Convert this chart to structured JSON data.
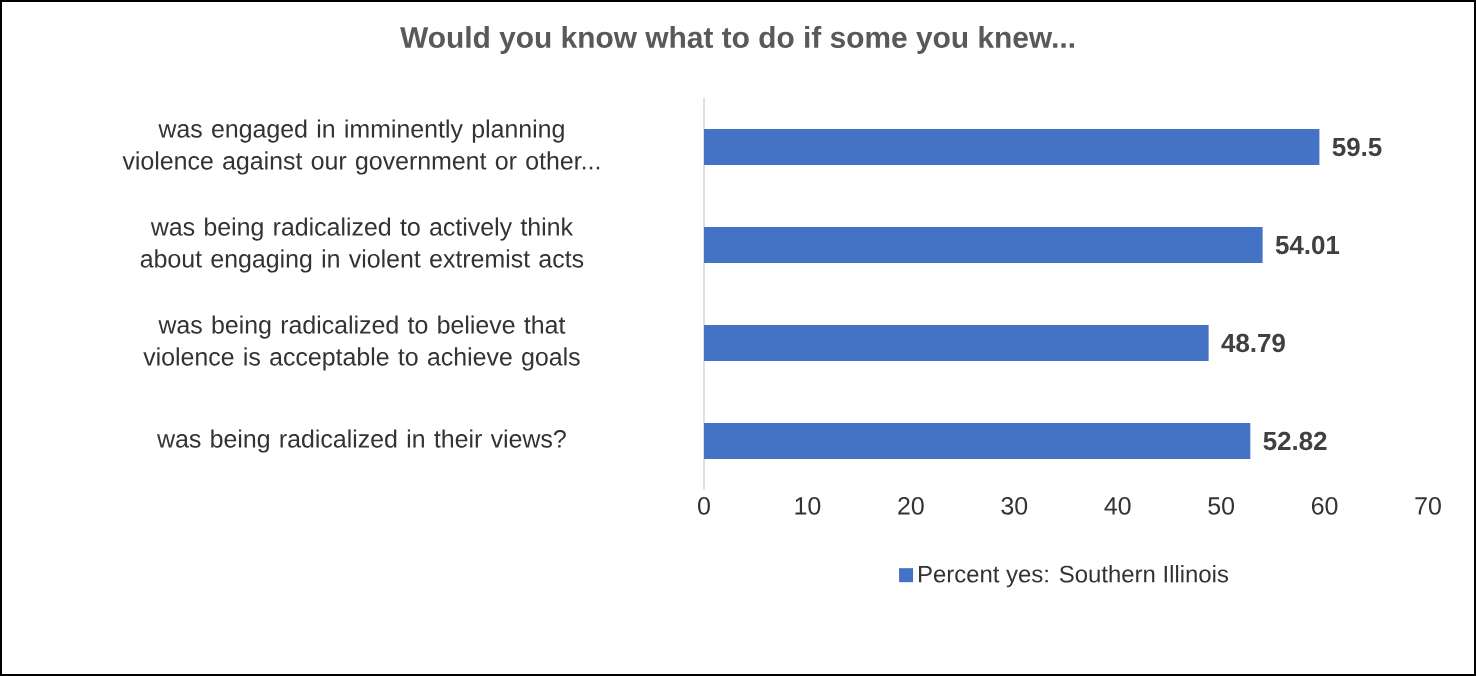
{
  "chart_data": {
    "type": "bar",
    "orientation": "horizontal",
    "title": "Would you know what to do if some you knew...",
    "categories": [
      "was engaged in imminently planning violence against our government or other...",
      "was being radicalized to actively think about engaging in violent extremist acts",
      "was being radicalized to believe that violence is acceptable to achieve goals",
      "was being radicalized in their views?"
    ],
    "series": [
      {
        "name": "Percent yes: Southern Illinois",
        "color": "#4472c4",
        "values": [
          59.5,
          54.01,
          48.79,
          52.82
        ]
      }
    ],
    "xlim": [
      0,
      70
    ],
    "xticks": [
      0,
      10,
      20,
      30,
      40,
      50,
      60,
      70
    ],
    "data_labels": true,
    "legend": "bottom"
  }
}
